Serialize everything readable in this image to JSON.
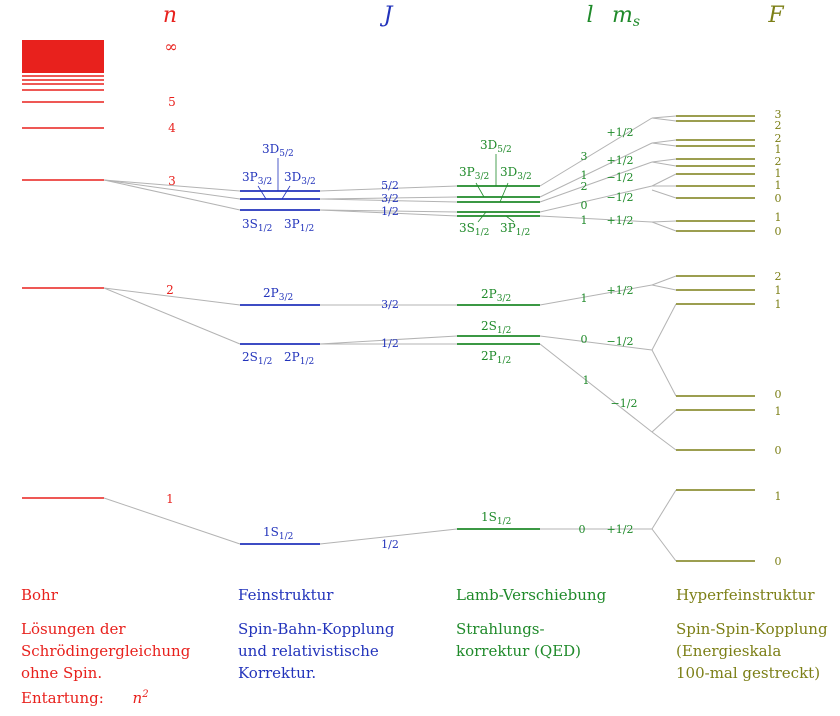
{
  "colors": {
    "bohr": "#e8211d",
    "fine": "#2233bb",
    "lamb": "#1f8a2a",
    "hyper": "#7c7f16",
    "connector": "#b3b3b3"
  },
  "headers": {
    "n": "n",
    "J": "J",
    "l": "l",
    "ms": "m",
    "ms_sub": "s",
    "F": "F"
  },
  "bohr": {
    "n_labels": {
      "inf": "∞",
      "n5": "5",
      "n4": "4",
      "n3": "3",
      "n2": "2",
      "n1": "1"
    }
  },
  "fine": {
    "n3": {
      "d52": "3D",
      "d52_sub": "5/2",
      "p32": "3P",
      "p32_sub": "3/2",
      "d32": "3D",
      "d32_sub": "3/2",
      "s12": "3S",
      "s12_sub": "1/2",
      "p12": "3P",
      "p12_sub": "1/2"
    },
    "n2": {
      "p32": "2P",
      "p32_sub": "3/2",
      "s12": "2S",
      "s12_sub": "1/2",
      "p12": "2P",
      "p12_sub": "1/2"
    },
    "n1": {
      "s12": "1S",
      "s12_sub": "1/2"
    }
  },
  "j_labels": {
    "n3_52": "5/2",
    "n3_32": "3/2",
    "n3_12": "1/2",
    "n2_32": "3/2",
    "n2_12": "1/2",
    "n1_12": "1/2"
  },
  "lamb": {
    "n3": {
      "d52": "3D",
      "d52_sub": "5/2",
      "p32": "3P",
      "p32_sub": "3/2",
      "d32": "3D",
      "d32_sub": "3/2",
      "s12": "3S",
      "s12_sub": "1/2",
      "p12": "3P",
      "p12_sub": "1/2"
    },
    "n2": {
      "p32": "2P",
      "p32_sub": "3/2",
      "s12": "2S",
      "s12_sub": "1/2",
      "p12": "2P",
      "p12_sub": "1/2"
    },
    "n1": {
      "s12": "1S",
      "s12_sub": "1/2"
    }
  },
  "l_labels": {
    "n3_3": "3",
    "n3_1a": "1",
    "n3_2": "2",
    "n3_0": "0",
    "n3_1b": "1",
    "n2_1": "1",
    "n2_0": "0",
    "n2_1b": "1",
    "n1_0": "0"
  },
  "ms_labels": {
    "n3_p1": "+1/2",
    "n3_p2": "+1/2",
    "n3_m1": "−1/2",
    "n3_m2": "−1/2",
    "n3_p3": "+1/2",
    "n2_p": "+1/2",
    "n2_m": "−1/2",
    "n2_m2": "−1/2",
    "n1_p": "+1/2"
  },
  "f_labels": {
    "n3": [
      "3",
      "2",
      "2",
      "1",
      "2",
      "1",
      "1",
      "0",
      "1",
      "0"
    ],
    "n2": [
      "2",
      "1",
      "1",
      "0",
      "1",
      "0"
    ],
    "n1": [
      "1",
      "0"
    ]
  },
  "captions": {
    "bohr": {
      "title": "Bohr",
      "lines": [
        "Lösungen der",
        "Schrödingergleichung",
        "ohne Spin.",
        "Entartung:"
      ],
      "degeneracy": "n",
      "degeneracy_sup": "2"
    },
    "fine": {
      "title": "Feinstruktur",
      "lines": [
        "Spin-Bahn-Kopplung",
        "und relativistische",
        "Korrektur."
      ]
    },
    "lamb": {
      "title": "Lamb-Verschiebung",
      "lines": [
        "Strahlungs-",
        "korrektur (QED)"
      ]
    },
    "hyper": {
      "title": "Hyperfeinstruktur",
      "lines": [
        "Spin-Spin-Kopplung",
        "(Energieskala",
        "100-mal gestreckt)"
      ]
    }
  }
}
